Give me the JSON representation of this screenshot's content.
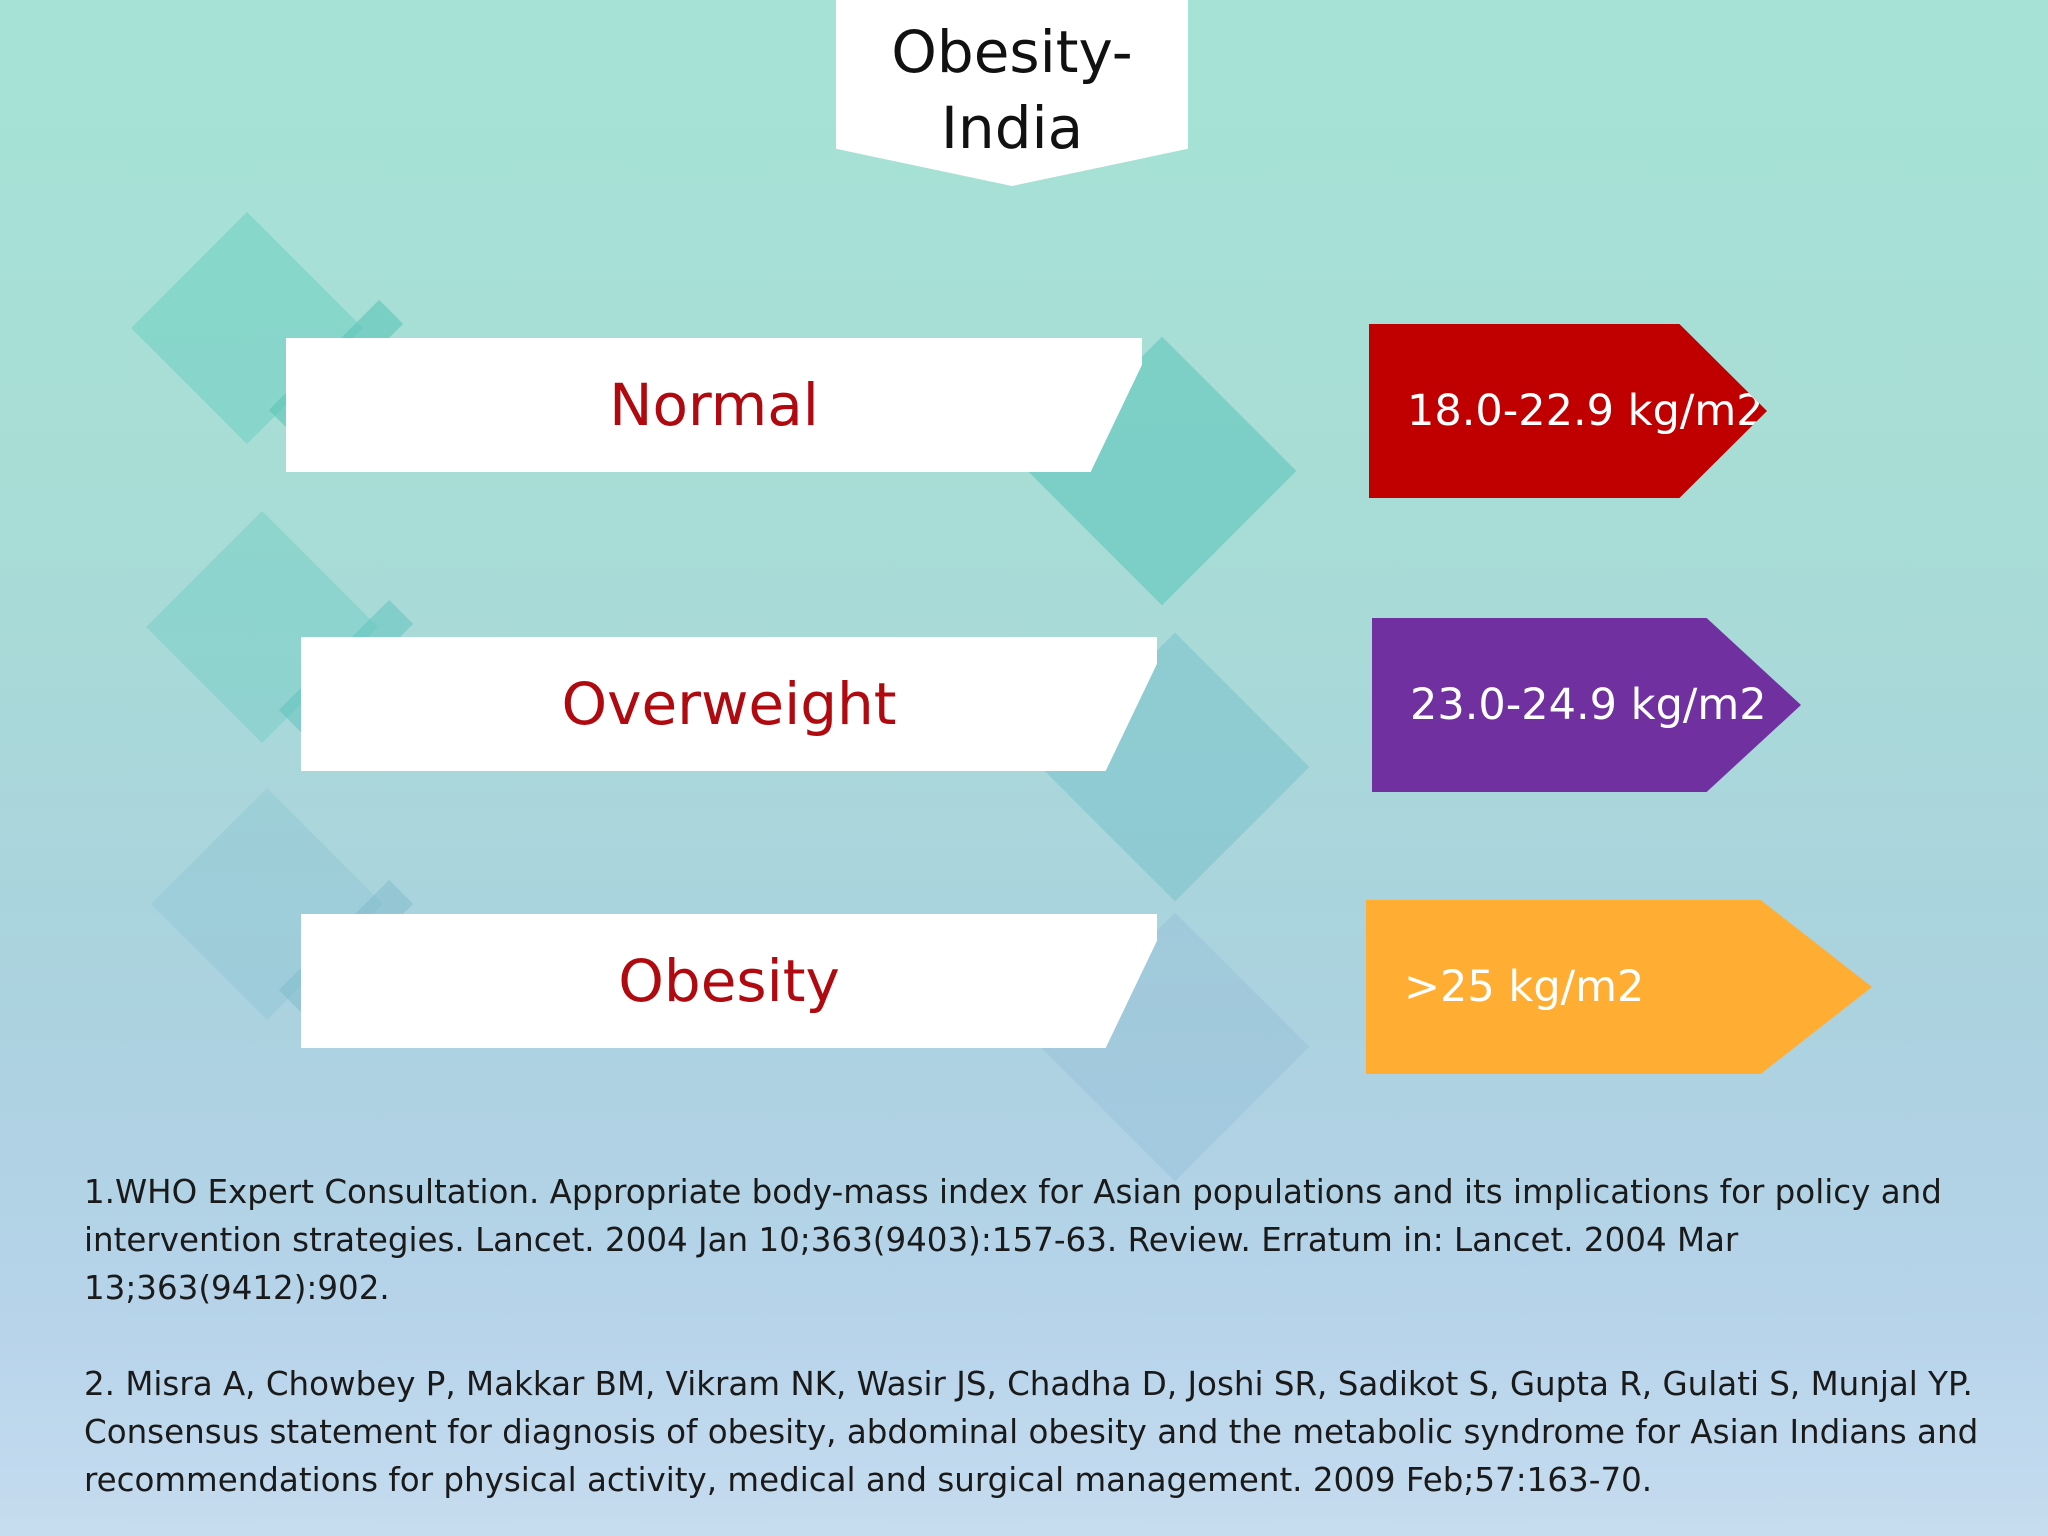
{
  "title": "Obesity-\nIndia",
  "categories": [
    {
      "label": "Normal",
      "range": "18.0-22.9 kg/m2",
      "color": "#c00000"
    },
    {
      "label": "Overweight",
      "range": "23.0-24.9 kg/m2",
      "color": "#7030a0"
    },
    {
      "label": "Obesity",
      "range": ">25 kg/m2",
      "color": "#ffae33"
    }
  ],
  "references": [
    "1.WHO Expert Consultation. Appropriate body-mass index for Asian populations and its implications for policy and intervention strategies. Lancet. 2004 Jan 10;363(9403):157-63. Review. Erratum in: Lancet. 2004 Mar 13;363(9412):902.",
    "2. Misra A, Chowbey P, Makkar BM, Vikram NK, Wasir JS, Chadha D, Joshi SR, Sadikot S, Gupta R, Gulati S, Munjal YP. Consensus statement for diagnosis of obesity, abdominal obesity and the metabolic syndrome for Asian Indians and recommendations for physical activity, medical and surgical management. 2009 Feb;57:163-70."
  ]
}
